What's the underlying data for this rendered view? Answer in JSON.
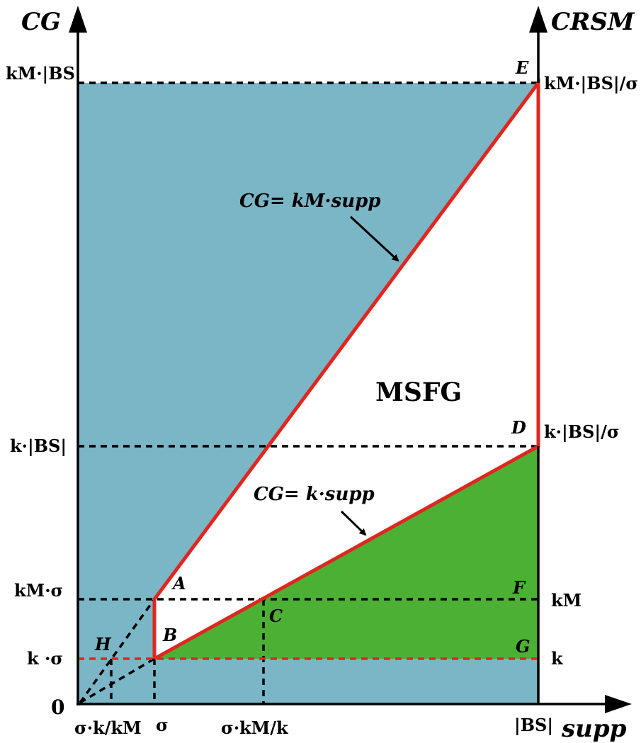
{
  "axes": {
    "left_title": "CG",
    "right_title": "CRSM",
    "bottom_title": "supp",
    "origin_label": "0"
  },
  "x_ticks": {
    "sigma_k_over_kM": "σ·k/kM",
    "sigma": "σ",
    "sigma_kM_over_k": "σ·kM/k",
    "BS": "|BS|"
  },
  "left_ticks": {
    "kM_BS": "kM·|BS|",
    "k_BS": "k·|BS|",
    "kM_sigma": "kM·σ",
    "k_sigma": "k ·σ"
  },
  "right_ticks": {
    "kM_BS_over_sigma": "kM·|BS|/σ",
    "k_BS_over_sigma": "k·|BS|/σ",
    "kM": "kM",
    "k": "k"
  },
  "points": {
    "A": "A",
    "B": "B",
    "C": "C",
    "D": "D",
    "E": "E",
    "F": "F",
    "G": "G",
    "H": "H"
  },
  "equations": {
    "upper": "CG= kM·supp",
    "lower": "CG= k·supp"
  },
  "region_label": "MSFG",
  "colors": {
    "blue_region": "#7ab6c6",
    "green_region": "#4cb035",
    "white_region": "#ffffff",
    "boundary": "#e0261f",
    "axis": "#000000"
  }
}
